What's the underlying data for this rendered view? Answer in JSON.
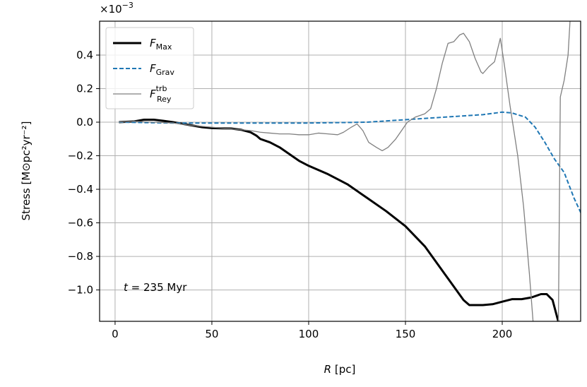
{
  "chart_data": {
    "type": "line",
    "y_label": "Stress [M⊙pc²yr⁻²]",
    "x_label_var": "R",
    "x_label_unit": "[pc]",
    "y_offset_label": "×10",
    "y_offset_exponent": "−3",
    "annotation_var": "t",
    "annotation_text": "= 235 Myr",
    "xlim": [
      -8,
      240.5
    ],
    "ylim": [
      -1.187,
      0.602
    ],
    "xticks": [
      0,
      50,
      100,
      150,
      200
    ],
    "yticks": [
      {
        "value": -1.0,
        "label": "−1.0"
      },
      {
        "value": -0.8,
        "label": "−0.8"
      },
      {
        "value": -0.6,
        "label": "−0.6"
      },
      {
        "value": -0.4,
        "label": "−0.4"
      },
      {
        "value": -0.2,
        "label": "−0.2"
      },
      {
        "value": 0,
        "label": "0.0"
      },
      0.2,
      0.4
    ],
    "grid": true,
    "legend": "upper left",
    "series": [
      {
        "name": "F",
        "sub": "Max",
        "color": "#000000",
        "dash": "solid",
        "width": 3,
        "x": [
          2,
          10,
          15,
          20,
          25,
          30,
          35,
          40,
          45,
          50,
          60,
          65,
          70,
          73,
          75,
          80,
          85,
          90,
          95,
          100,
          110,
          120,
          130,
          140,
          150,
          160,
          170,
          180,
          183,
          190,
          195,
          200,
          205,
          210,
          215,
          220,
          223,
          226,
          229
        ],
        "values": [
          0.0,
          0.005,
          0.015,
          0.015,
          0.008,
          0.0,
          -0.01,
          -0.02,
          -0.03,
          -0.035,
          -0.038,
          -0.045,
          -0.06,
          -0.08,
          -0.1,
          -0.12,
          -0.15,
          -0.19,
          -0.23,
          -0.26,
          -0.31,
          -0.37,
          -0.45,
          -0.53,
          -0.62,
          -0.74,
          -0.9,
          -1.06,
          -1.09,
          -1.09,
          -1.085,
          -1.07,
          -1.055,
          -1.055,
          -1.045,
          -1.025,
          -1.025,
          -1.06,
          -1.19
        ]
      },
      {
        "name": "F",
        "sub": "Grav",
        "color": "#1f77b4",
        "dash": "dashed",
        "width": 2,
        "x": [
          2,
          30,
          50,
          100,
          130,
          150,
          170,
          190,
          200,
          205,
          212,
          217,
          222,
          227,
          232,
          237,
          241
        ],
        "values": [
          0.0,
          -0.005,
          -0.005,
          -0.005,
          0.0,
          0.015,
          0.03,
          0.045,
          0.06,
          0.055,
          0.03,
          -0.03,
          -0.12,
          -0.22,
          -0.3,
          -0.45,
          -0.55
        ]
      },
      {
        "name": "F",
        "sub": "Rey",
        "sup": "trb",
        "color": "#808080",
        "dash": "solid",
        "width": 1.3,
        "x": [
          2,
          10,
          20,
          30,
          40,
          50,
          60,
          70,
          75,
          80,
          85,
          90,
          95,
          100,
          105,
          110,
          115,
          118,
          122,
          125,
          128,
          131,
          135,
          138,
          141,
          145,
          148,
          151,
          155,
          160,
          163,
          166,
          169,
          172,
          175,
          178,
          180,
          183,
          186,
          189,
          190,
          193,
          196,
          199,
          201,
          204,
          208,
          211,
          214,
          216,
          229,
          230,
          232,
          234,
          235
        ],
        "values": [
          0.0,
          0.005,
          0.0,
          -0.005,
          -0.02,
          -0.03,
          -0.04,
          -0.05,
          -0.06,
          -0.065,
          -0.07,
          -0.07,
          -0.075,
          -0.075,
          -0.065,
          -0.07,
          -0.075,
          -0.06,
          -0.03,
          -0.01,
          -0.05,
          -0.12,
          -0.15,
          -0.17,
          -0.15,
          -0.1,
          -0.05,
          0.0,
          0.03,
          0.05,
          0.08,
          0.2,
          0.35,
          0.47,
          0.48,
          0.52,
          0.53,
          0.48,
          0.38,
          0.3,
          0.29,
          0.33,
          0.36,
          0.5,
          0.35,
          0.1,
          -0.2,
          -0.5,
          -0.9,
          -1.2,
          -1.2,
          0.15,
          0.25,
          0.4,
          0.6
        ]
      }
    ]
  }
}
